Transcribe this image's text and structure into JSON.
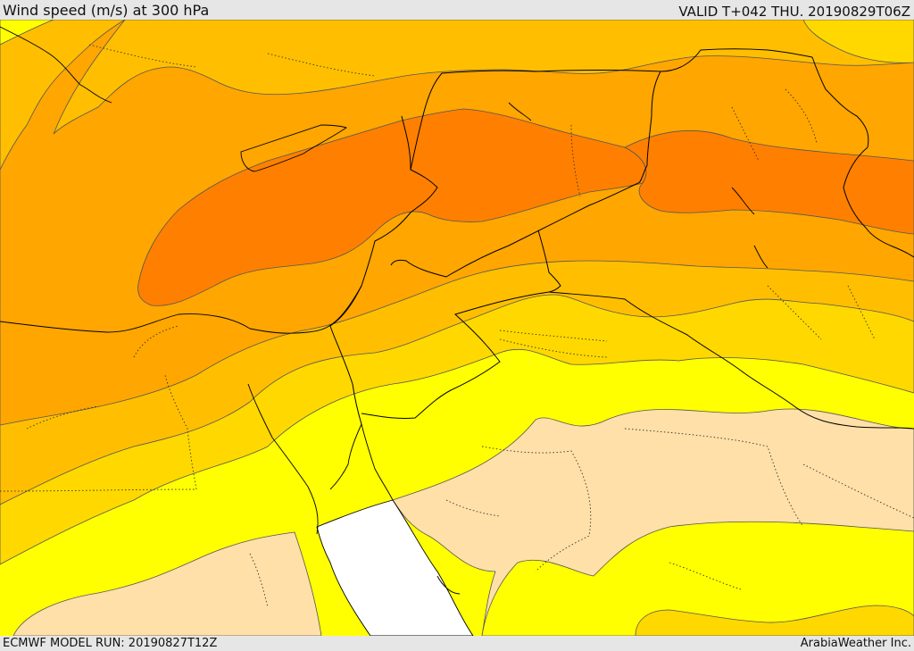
{
  "header": {
    "title": "Wind speed (m/s) at 300 hPa",
    "valid_time": "VALID T+042 THU. 20190829T06Z"
  },
  "footer": {
    "model_run": "ECMWF MODEL RUN: 20190827T12Z",
    "credit": "ArabiaWeather Inc."
  },
  "map": {
    "variable": "wind speed",
    "level": "300 hPa",
    "palette": {
      "lowest": "#ffe0a8",
      "low": "#ffff00",
      "mid_low": "#ffd800",
      "mid": "#ffbf00",
      "mid_high": "#ffa600",
      "highest": "#ff8000",
      "sea_blank": "#ffffff",
      "contour": "#555555",
      "border": "#000000"
    }
  }
}
